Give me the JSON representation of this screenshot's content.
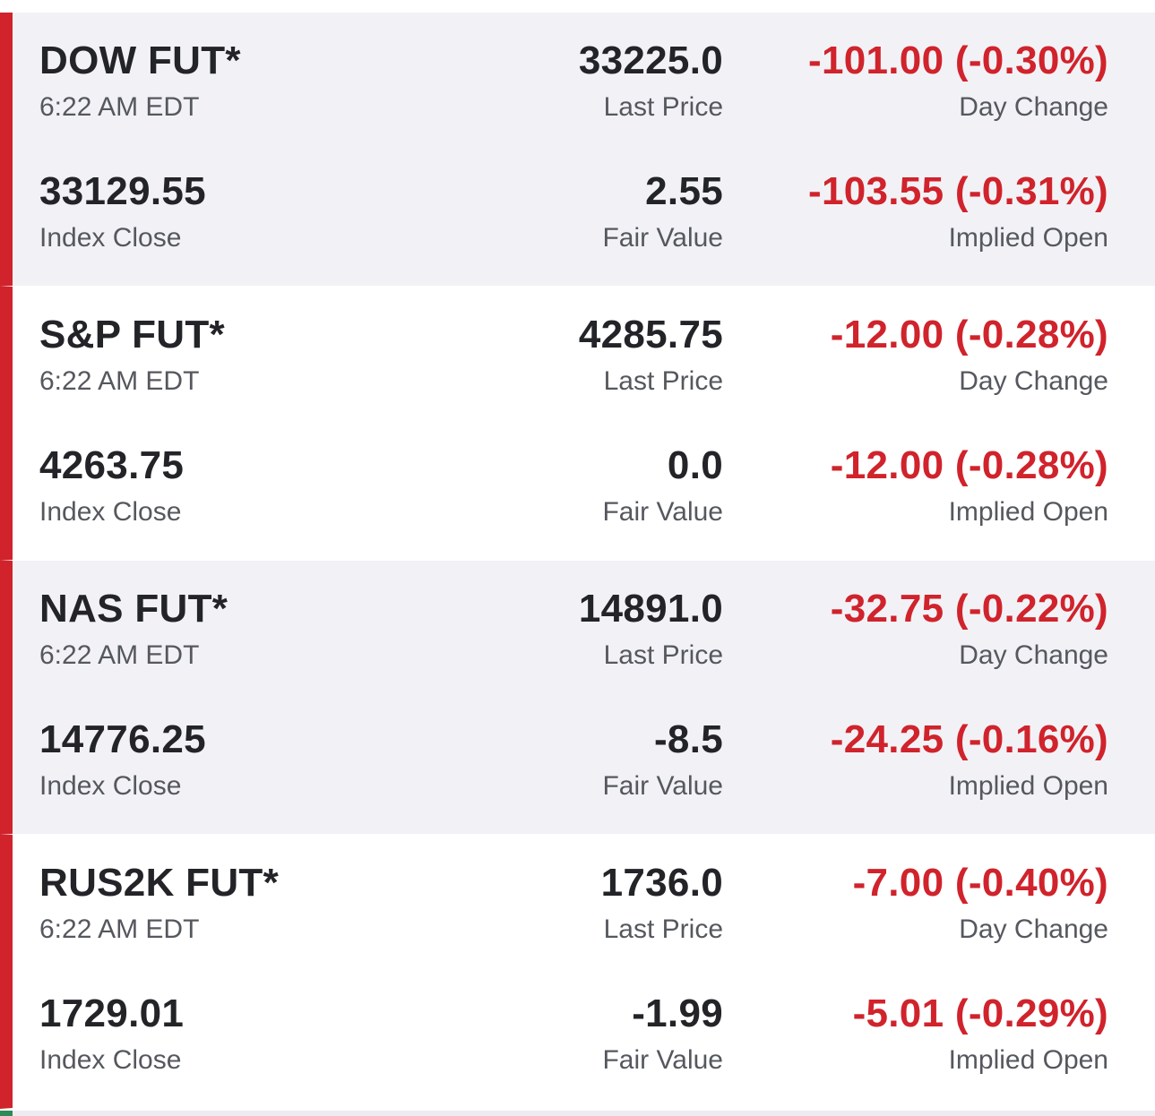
{
  "colors": {
    "accent_bar": "#d0232c",
    "negative": "#d0232c",
    "shaded_bg": "#f2f2f6",
    "text_primary": "#222428",
    "text_secondary": "#55585e"
  },
  "labels": {
    "last_price": "Last Price",
    "day_change": "Day Change",
    "index_close": "Index Close",
    "fair_value": "Fair Value",
    "implied_open": "Implied Open"
  },
  "futures": [
    {
      "name": "DOW FUT*",
      "time": "6:22 AM EDT",
      "last_price": "33225.0",
      "day_change": "-101.00 (-0.30%)",
      "index_close": "33129.55",
      "fair_value": "2.55",
      "implied_open": "-103.55 (-0.31%)"
    },
    {
      "name": "S&P FUT*",
      "time": "6:22 AM EDT",
      "last_price": "4285.75",
      "day_change": "-12.00 (-0.28%)",
      "index_close": "4263.75",
      "fair_value": "0.0",
      "implied_open": "-12.00 (-0.28%)"
    },
    {
      "name": "NAS FUT*",
      "time": "6:22 AM EDT",
      "last_price": "14891.0",
      "day_change": "-32.75 (-0.22%)",
      "index_close": "14776.25",
      "fair_value": "-8.5",
      "implied_open": "-24.25 (-0.16%)"
    },
    {
      "name": "RUS2K FUT*",
      "time": "6:22 AM EDT",
      "last_price": "1736.0",
      "day_change": "-7.00 (-0.40%)",
      "index_close": "1729.01",
      "fair_value": "-1.99",
      "implied_open": "-5.01 (-0.29%)"
    }
  ]
}
